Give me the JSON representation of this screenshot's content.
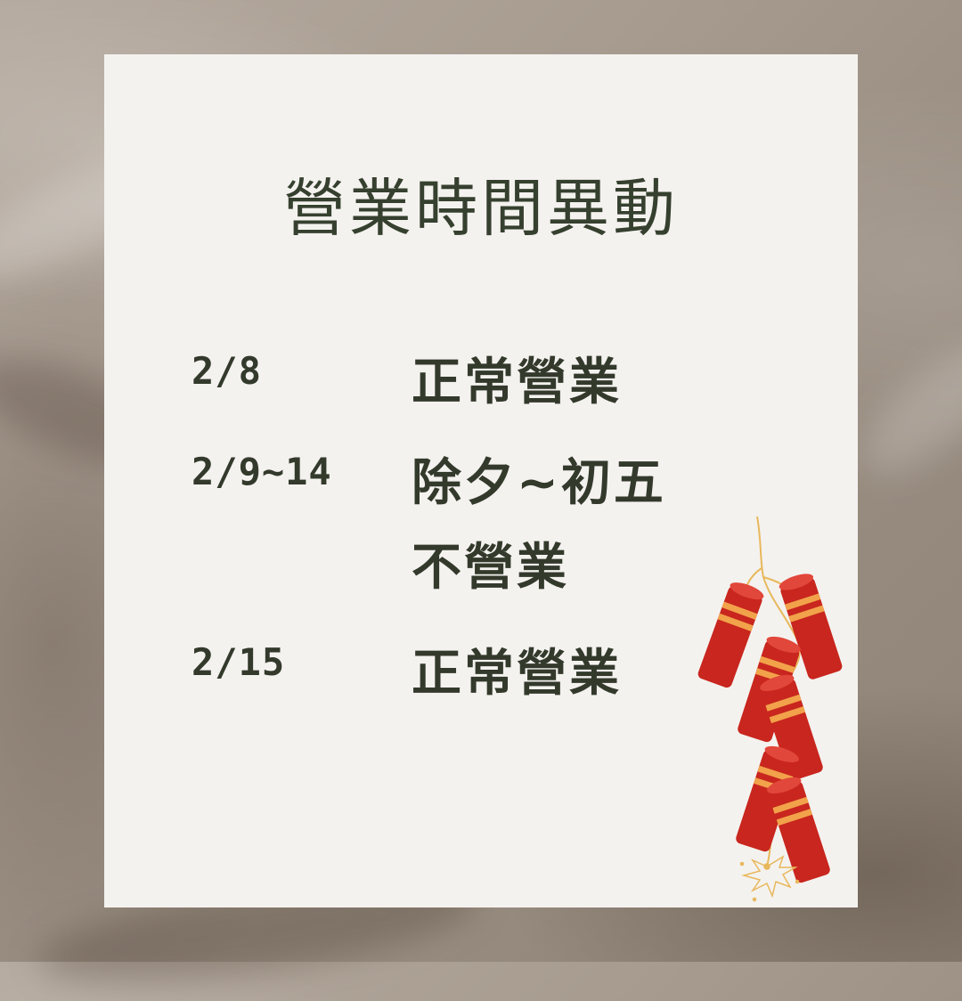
{
  "title": "營業時間異動",
  "schedule": [
    {
      "date": "2/8",
      "status": "正常營業"
    },
    {
      "date": "2/9~14",
      "status": "除夕~初五"
    },
    {
      "date": "",
      "status": "不營業"
    },
    {
      "date": "2/15",
      "status": "正常營業"
    }
  ],
  "decoration": {
    "icon": "firecrackers-icon",
    "colors": {
      "cracker_red": "#c8261e",
      "band": "#f2a24a",
      "fuse": "#e8b85c"
    }
  },
  "colors": {
    "text": "#333a2c",
    "card": "#f4f2ef",
    "background": "#a79b8f"
  }
}
